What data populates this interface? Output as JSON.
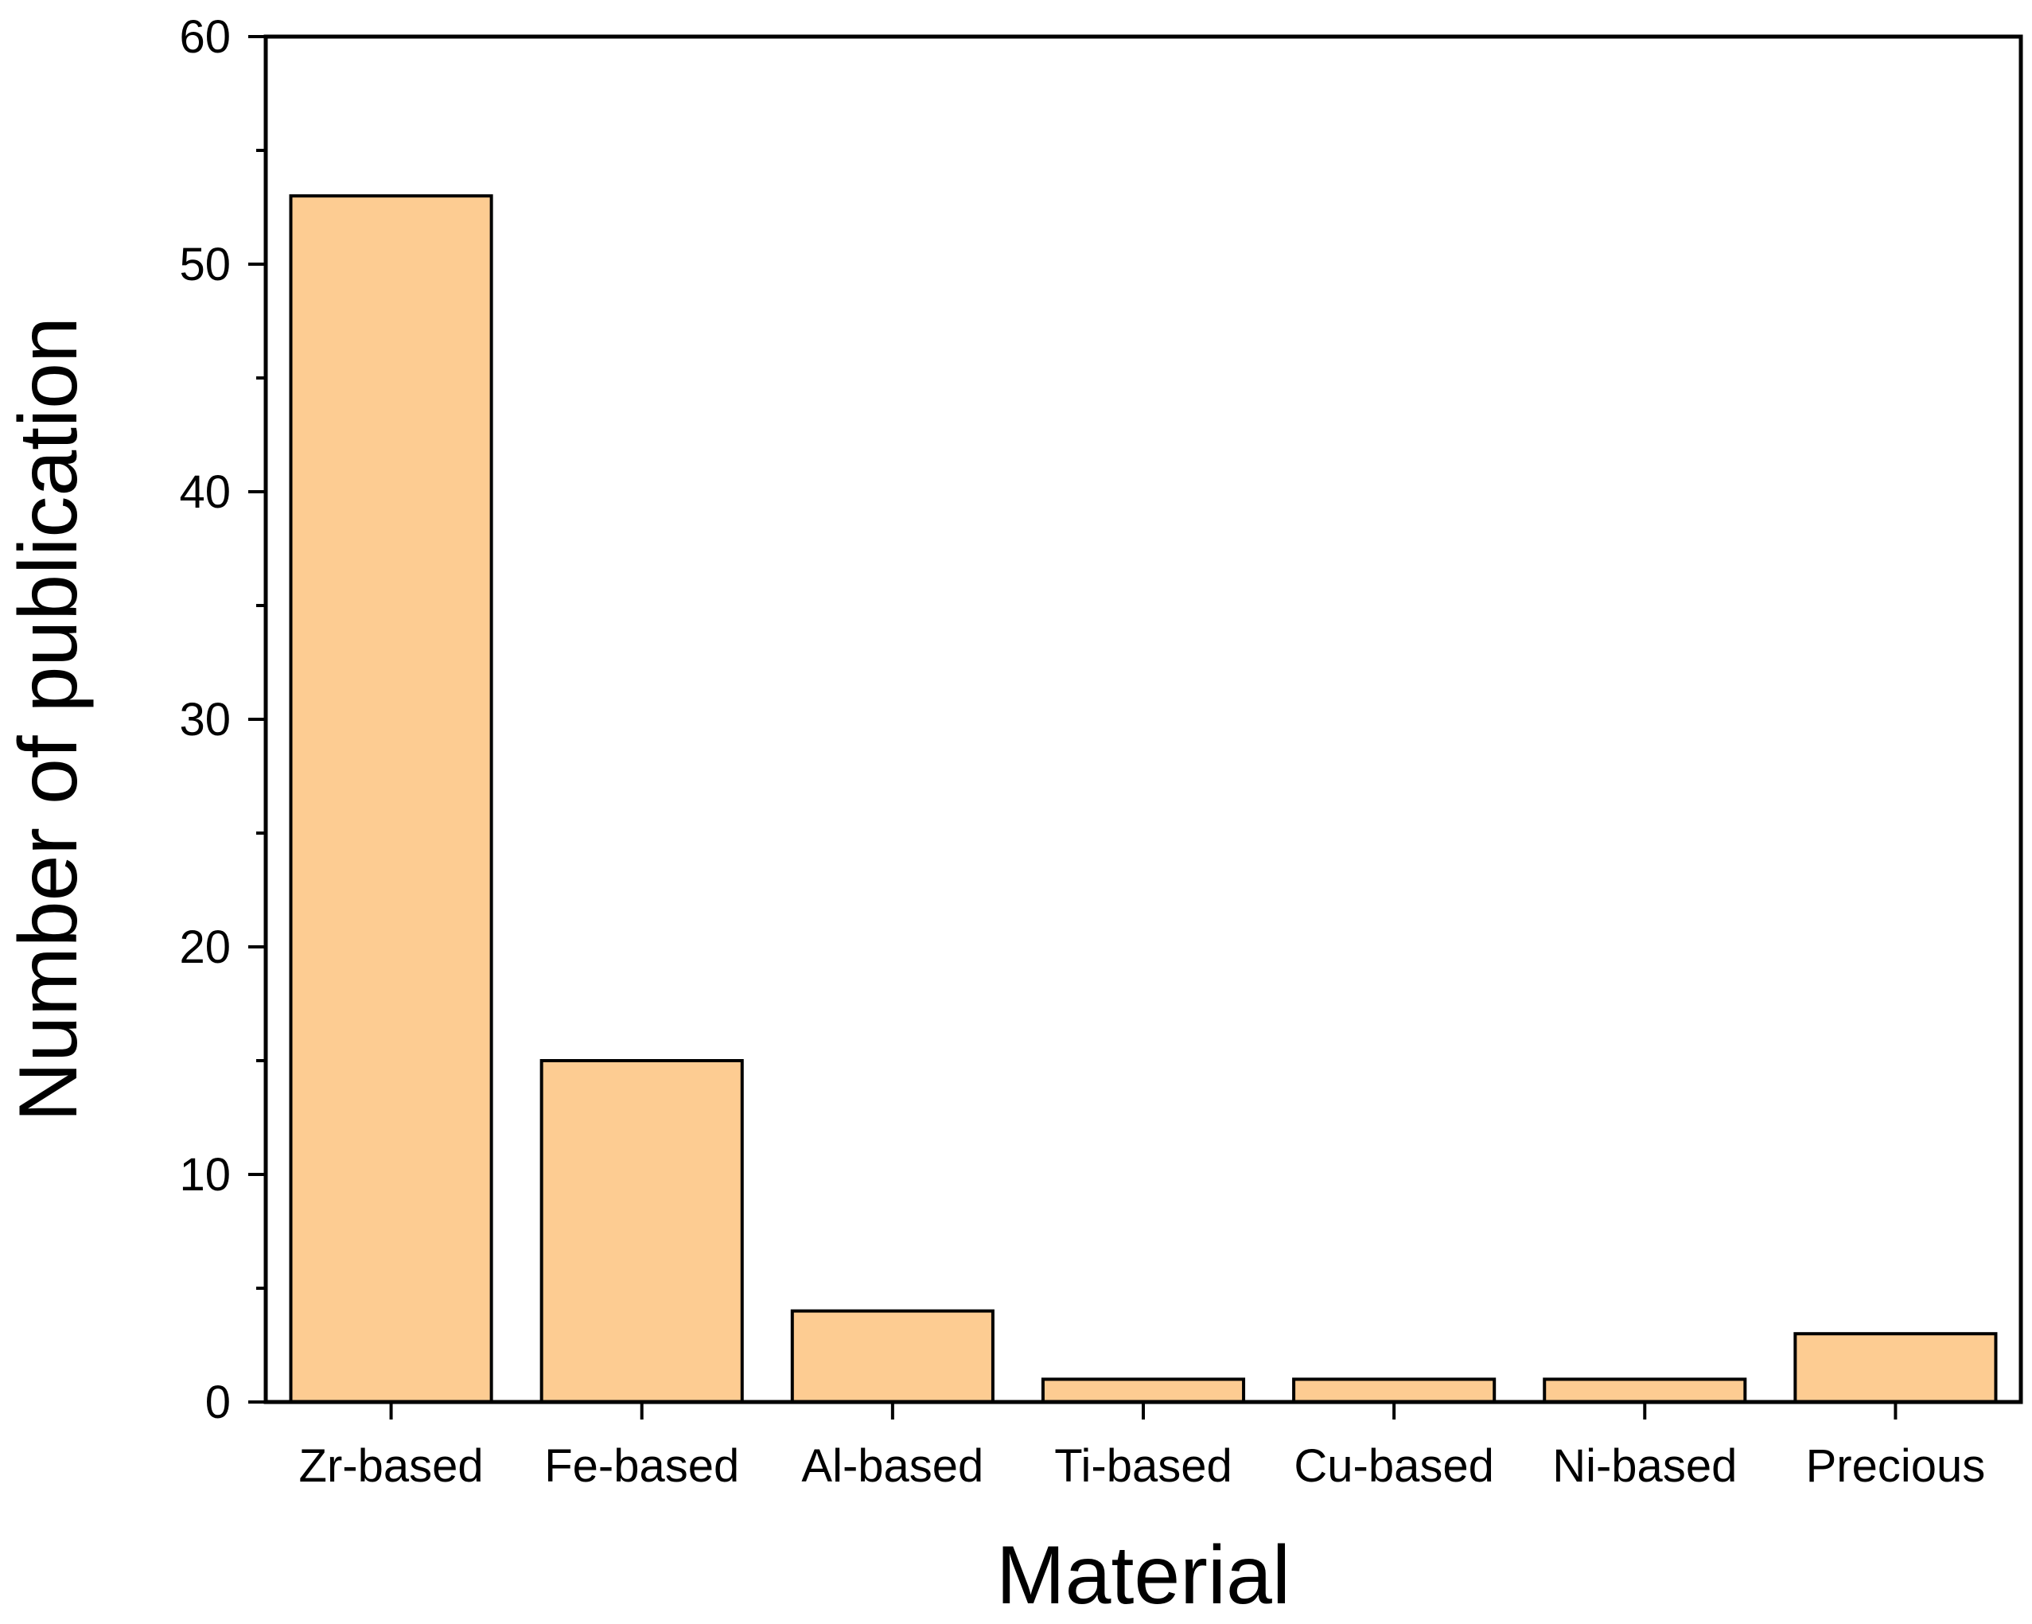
{
  "chart_data": {
    "type": "bar",
    "categories": [
      "Zr-based",
      "Fe-based",
      "Al-based",
      "Ti-based",
      "Cu-based",
      "Ni-based",
      "Precious"
    ],
    "values": [
      53,
      15,
      4,
      1,
      1,
      1,
      3
    ],
    "xlabel": "Material",
    "ylabel": "Number of publication",
    "ylim": [
      0,
      60
    ],
    "yticks": [
      0,
      10,
      20,
      30,
      40,
      50,
      60
    ],
    "yminor_step": 5,
    "grid": false,
    "bar_color": "#FDCC92",
    "edge_color": "#000000"
  }
}
